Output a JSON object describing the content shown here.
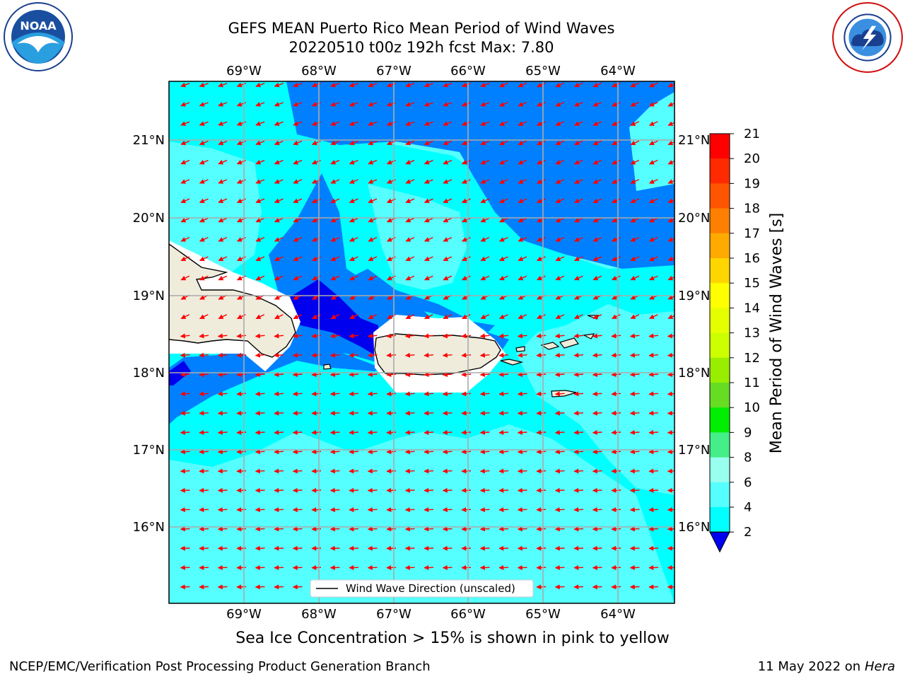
{
  "title": {
    "line1": "GEFS MEAN Puerto Rico Mean Period of Wind Waves",
    "line2": "20220510 t00z 192h fcst   Max: 7.80"
  },
  "logos": {
    "left": "NOAA",
    "right": "NATIONAL WEATHER SERVICE"
  },
  "map": {
    "lon_labels": [
      "69°W",
      "68°W",
      "67°W",
      "66°W",
      "65°W",
      "64°W"
    ],
    "lat_labels": [
      "21°N",
      "20°N",
      "19°N",
      "18°N",
      "17°N",
      "16°N"
    ],
    "lon_range": [
      -70.0,
      -63.3
    ],
    "lat_range": [
      15.0,
      21.7
    ],
    "grid": true,
    "legend_label": "Wind Wave Direction (unscaled)",
    "arrow_color": "#ff0000",
    "land_color": "#efecdc",
    "mask_color": "#ffffff"
  },
  "colorbar": {
    "label": "Mean Period of Wind Waves [s]",
    "tick_labels": [
      "21",
      "20",
      "19",
      "18",
      "17",
      "16",
      "15",
      "14",
      "13",
      "12",
      "11",
      "10",
      "9",
      "8",
      "6",
      "4",
      "2"
    ],
    "colors": [
      "#ff0000",
      "#ff2a00",
      "#ff5500",
      "#ff8000",
      "#ffaa00",
      "#ffd500",
      "#ffff00",
      "#e6ff00",
      "#ccff00",
      "#99ee00",
      "#66dd22",
      "#00ee00",
      "#44ee88",
      "#99ffee",
      "#55ffff",
      "#00ffff",
      "#0080ff"
    ],
    "extend_color": "#0000ee"
  },
  "notes": {
    "sea_ice": "Sea Ice Concentration > 15% is shown in pink to yellow",
    "branch": "NCEP/EMC/Verification Post Processing Product Generation Branch",
    "date": "11 May 2022 on",
    "machine": "Hera"
  }
}
